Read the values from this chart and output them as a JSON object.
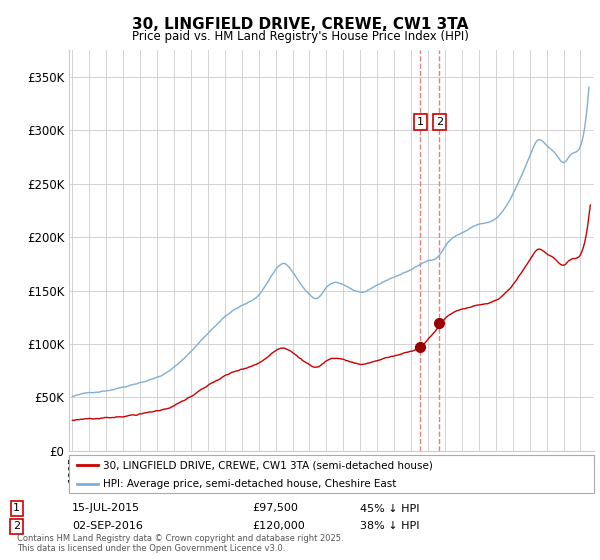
{
  "title": "30, LINGFIELD DRIVE, CREWE, CW1 3TA",
  "subtitle": "Price paid vs. HM Land Registry's House Price Index (HPI)",
  "ylabel_ticks": [
    "£0",
    "£50K",
    "£100K",
    "£150K",
    "£200K",
    "£250K",
    "£300K",
    "£350K"
  ],
  "ytick_values": [
    0,
    50000,
    100000,
    150000,
    200000,
    250000,
    300000,
    350000
  ],
  "ylim": [
    0,
    375000
  ],
  "xlim_start": 1994.8,
  "xlim_end": 2025.8,
  "marker1_x": 2015.54,
  "marker2_x": 2016.67,
  "marker1_price": 97500,
  "marker2_price": 120000,
  "legend1_label": "30, LINGFIELD DRIVE, CREWE, CW1 3TA (semi-detached house)",
  "legend2_label": "HPI: Average price, semi-detached house, Cheshire East",
  "ann1_date": "15-JUL-2015",
  "ann1_price": "£97,500",
  "ann1_hpi": "45% ↓ HPI",
  "ann2_date": "02-SEP-2016",
  "ann2_price": "£120,000",
  "ann2_hpi": "38% ↓ HPI",
  "line1_color": "#cc0000",
  "line2_color": "#7fafd4",
  "marker_color": "#990000",
  "dashed_color": "#e88080",
  "grid_color": "#cccccc",
  "bg_color": "#ffffff",
  "annotation_box_color": "#cc0000",
  "footer_text": "Contains HM Land Registry data © Crown copyright and database right 2025.\nThis data is licensed under the Open Government Licence v3.0."
}
